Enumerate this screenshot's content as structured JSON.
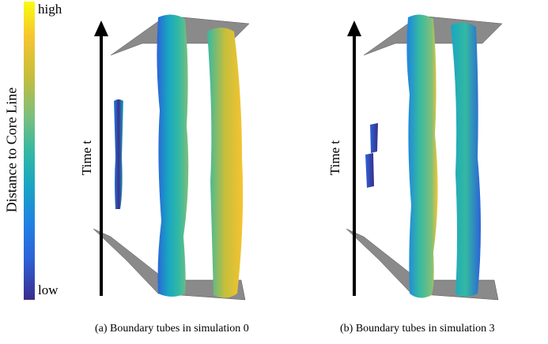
{
  "colorbar": {
    "title": "Distance to Core Line",
    "high_label": "high",
    "low_label": "low",
    "colors": [
      "#f9fb0e",
      "#f5c431",
      "#7fbf7b",
      "#34b9a2",
      "#1f82e3",
      "#3a2e8c"
    ]
  },
  "panels": [
    {
      "axis_label": "Time t",
      "caption": "(a) Boundary tubes in simulation 0"
    },
    {
      "axis_label": "Time t",
      "caption": "(b) Boundary tubes in simulation 3"
    }
  ]
}
